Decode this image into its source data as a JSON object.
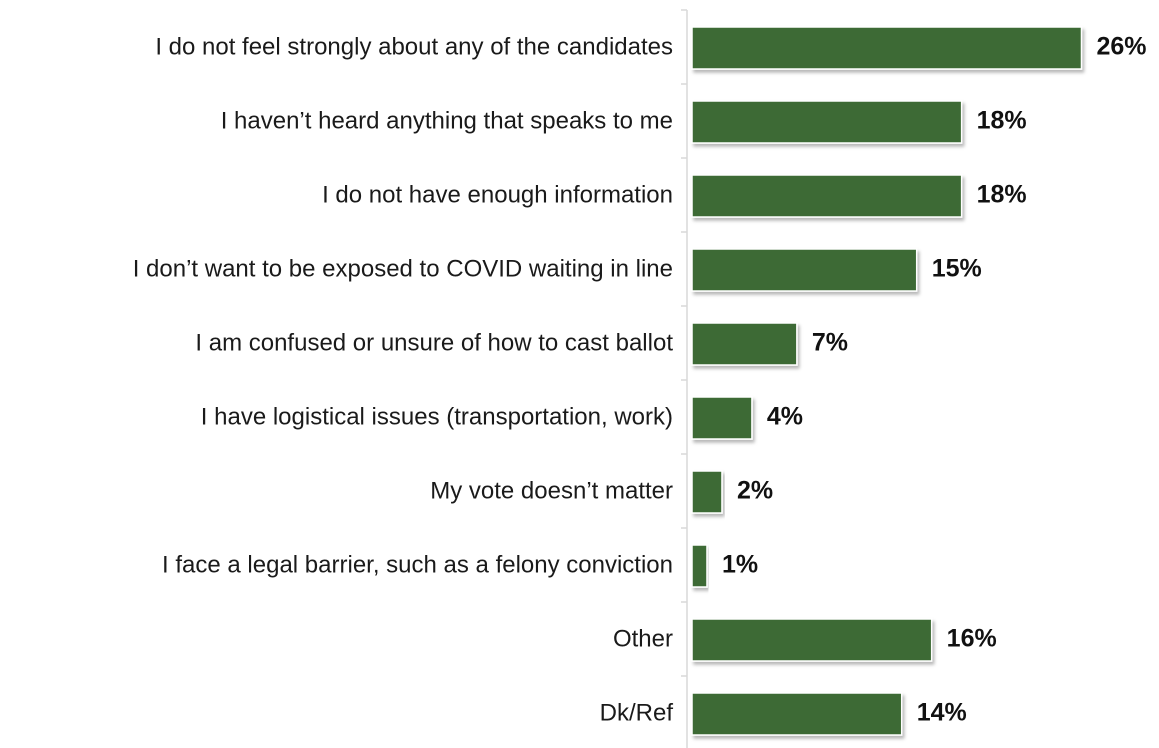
{
  "chart_data": {
    "type": "bar",
    "orientation": "horizontal",
    "categories": [
      "I do not feel strongly about any of the candidates",
      "I haven’t heard anything that speaks to me",
      "I do not have enough information",
      "I don’t want to be exposed to COVID waiting in line",
      "I am confused or unsure of how to cast ballot",
      "I have logistical issues (transportation, work)",
      "My vote doesn’t matter",
      "I face a legal barrier, such as a felony conviction",
      "Other",
      "Dk/Ref"
    ],
    "values": [
      26,
      18,
      18,
      15,
      7,
      4,
      2,
      1,
      16,
      14
    ],
    "value_labels": [
      "26%",
      "18%",
      "18%",
      "15%",
      "7%",
      "4%",
      "2%",
      "1%",
      "16%",
      "14%"
    ],
    "xlim": [
      0,
      26
    ],
    "bar_color": "#3d6b35",
    "grid": false,
    "legend": "none"
  }
}
